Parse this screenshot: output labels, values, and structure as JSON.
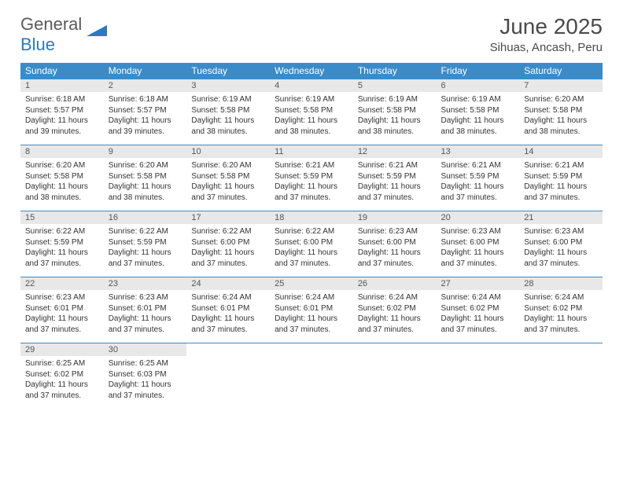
{
  "brand": {
    "text1": "General",
    "text2": "Blue",
    "mark_color": "#2b7bbd"
  },
  "title": "June 2025",
  "location": "Sihuas, Ancash, Peru",
  "colors": {
    "header_bg": "#3b8bc8",
    "header_text": "#ffffff",
    "daynum_bg": "#e8e8e8",
    "rule": "#3b8bc8",
    "body_bg": "#ffffff",
    "text": "#333333"
  },
  "weekdays": [
    "Sunday",
    "Monday",
    "Tuesday",
    "Wednesday",
    "Thursday",
    "Friday",
    "Saturday"
  ],
  "weeks": [
    [
      {
        "n": "1",
        "sunrise": "6:18 AM",
        "sunset": "5:57 PM",
        "daylight": "11 hours and 39 minutes."
      },
      {
        "n": "2",
        "sunrise": "6:18 AM",
        "sunset": "5:57 PM",
        "daylight": "11 hours and 39 minutes."
      },
      {
        "n": "3",
        "sunrise": "6:19 AM",
        "sunset": "5:58 PM",
        "daylight": "11 hours and 38 minutes."
      },
      {
        "n": "4",
        "sunrise": "6:19 AM",
        "sunset": "5:58 PM",
        "daylight": "11 hours and 38 minutes."
      },
      {
        "n": "5",
        "sunrise": "6:19 AM",
        "sunset": "5:58 PM",
        "daylight": "11 hours and 38 minutes."
      },
      {
        "n": "6",
        "sunrise": "6:19 AM",
        "sunset": "5:58 PM",
        "daylight": "11 hours and 38 minutes."
      },
      {
        "n": "7",
        "sunrise": "6:20 AM",
        "sunset": "5:58 PM",
        "daylight": "11 hours and 38 minutes."
      }
    ],
    [
      {
        "n": "8",
        "sunrise": "6:20 AM",
        "sunset": "5:58 PM",
        "daylight": "11 hours and 38 minutes."
      },
      {
        "n": "9",
        "sunrise": "6:20 AM",
        "sunset": "5:58 PM",
        "daylight": "11 hours and 38 minutes."
      },
      {
        "n": "10",
        "sunrise": "6:20 AM",
        "sunset": "5:58 PM",
        "daylight": "11 hours and 37 minutes."
      },
      {
        "n": "11",
        "sunrise": "6:21 AM",
        "sunset": "5:59 PM",
        "daylight": "11 hours and 37 minutes."
      },
      {
        "n": "12",
        "sunrise": "6:21 AM",
        "sunset": "5:59 PM",
        "daylight": "11 hours and 37 minutes."
      },
      {
        "n": "13",
        "sunrise": "6:21 AM",
        "sunset": "5:59 PM",
        "daylight": "11 hours and 37 minutes."
      },
      {
        "n": "14",
        "sunrise": "6:21 AM",
        "sunset": "5:59 PM",
        "daylight": "11 hours and 37 minutes."
      }
    ],
    [
      {
        "n": "15",
        "sunrise": "6:22 AM",
        "sunset": "5:59 PM",
        "daylight": "11 hours and 37 minutes."
      },
      {
        "n": "16",
        "sunrise": "6:22 AM",
        "sunset": "5:59 PM",
        "daylight": "11 hours and 37 minutes."
      },
      {
        "n": "17",
        "sunrise": "6:22 AM",
        "sunset": "6:00 PM",
        "daylight": "11 hours and 37 minutes."
      },
      {
        "n": "18",
        "sunrise": "6:22 AM",
        "sunset": "6:00 PM",
        "daylight": "11 hours and 37 minutes."
      },
      {
        "n": "19",
        "sunrise": "6:23 AM",
        "sunset": "6:00 PM",
        "daylight": "11 hours and 37 minutes."
      },
      {
        "n": "20",
        "sunrise": "6:23 AM",
        "sunset": "6:00 PM",
        "daylight": "11 hours and 37 minutes."
      },
      {
        "n": "21",
        "sunrise": "6:23 AM",
        "sunset": "6:00 PM",
        "daylight": "11 hours and 37 minutes."
      }
    ],
    [
      {
        "n": "22",
        "sunrise": "6:23 AM",
        "sunset": "6:01 PM",
        "daylight": "11 hours and 37 minutes."
      },
      {
        "n": "23",
        "sunrise": "6:23 AM",
        "sunset": "6:01 PM",
        "daylight": "11 hours and 37 minutes."
      },
      {
        "n": "24",
        "sunrise": "6:24 AM",
        "sunset": "6:01 PM",
        "daylight": "11 hours and 37 minutes."
      },
      {
        "n": "25",
        "sunrise": "6:24 AM",
        "sunset": "6:01 PM",
        "daylight": "11 hours and 37 minutes."
      },
      {
        "n": "26",
        "sunrise": "6:24 AM",
        "sunset": "6:02 PM",
        "daylight": "11 hours and 37 minutes."
      },
      {
        "n": "27",
        "sunrise": "6:24 AM",
        "sunset": "6:02 PM",
        "daylight": "11 hours and 37 minutes."
      },
      {
        "n": "28",
        "sunrise": "6:24 AM",
        "sunset": "6:02 PM",
        "daylight": "11 hours and 37 minutes."
      }
    ],
    [
      {
        "n": "29",
        "sunrise": "6:25 AM",
        "sunset": "6:02 PM",
        "daylight": "11 hours and 37 minutes."
      },
      {
        "n": "30",
        "sunrise": "6:25 AM",
        "sunset": "6:03 PM",
        "daylight": "11 hours and 37 minutes."
      },
      null,
      null,
      null,
      null,
      null
    ]
  ],
  "labels": {
    "sunrise": "Sunrise: ",
    "sunset": "Sunset: ",
    "daylight": "Daylight: "
  }
}
